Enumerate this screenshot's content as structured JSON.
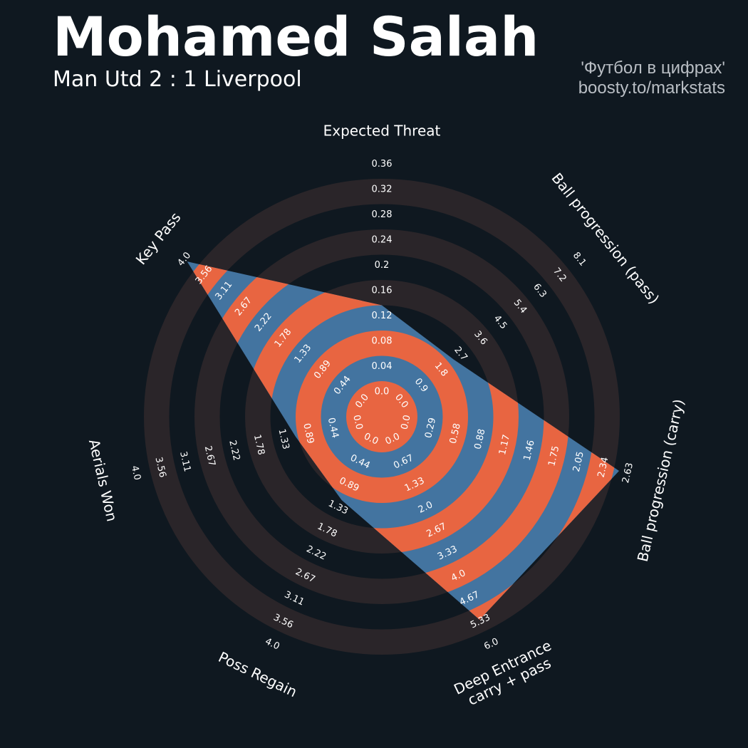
{
  "header": {
    "title": "Mohamed Salah",
    "subtitle": "Man Utd 2 : 1 Liverpool",
    "credit_line1": "'Футбол в цифрах'",
    "credit_line2": "boosty.to/markstats"
  },
  "colors": {
    "background": "#0f1820",
    "ring_band": "#2a2529",
    "fill_blue": "#4374a0",
    "fill_orange": "#e86541",
    "text": "#ffffff",
    "credit": "#b9bec4"
  },
  "chart_data": {
    "type": "radar",
    "title": "Mohamed Salah",
    "subtitle": "Man Utd 2 : 1 Liverpool",
    "axes": [
      {
        "name": "Expected Threat",
        "min": 0,
        "max": 0.36,
        "value": 0.12,
        "ticks": [
          "0.0",
          "0.04",
          "0.08",
          "0.12",
          "0.16",
          "0.2",
          "0.24",
          "0.28",
          "0.32",
          "0.36"
        ]
      },
      {
        "name": "Ball progression (pass)",
        "min": 0,
        "max": 8.1,
        "value": 2.0,
        "ticks": [
          "0.0",
          "0.9",
          "1.8",
          "2.7",
          "3.6",
          "4.5",
          "5.4",
          "6.3",
          "7.2",
          "8.1"
        ]
      },
      {
        "name": "Ball progression (carry)",
        "min": 0,
        "max": 2.63,
        "value": 2.4,
        "ticks": [
          "0.0",
          "0.29",
          "0.58",
          "0.88",
          "1.17",
          "1.46",
          "1.75",
          "2.05",
          "2.34",
          "2.63"
        ]
      },
      {
        "name": "Deep Entrance\ncarry + pass",
        "min": 0,
        "max": 6.0,
        "value": 5.0,
        "ticks": [
          "0.0",
          "0.67",
          "1.33",
          "2.0",
          "2.67",
          "3.33",
          "4.0",
          "4.67",
          "5.33",
          "6.0"
        ]
      },
      {
        "name": "Poss Regain",
        "min": 0,
        "max": 4.0,
        "value": 1.0,
        "ticks": [
          "0.0",
          "0.44",
          "0.89",
          "1.33",
          "1.78",
          "2.22",
          "2.67",
          "3.11",
          "3.56",
          "4.0"
        ]
      },
      {
        "name": "Aerials Won",
        "min": 0,
        "max": 4.0,
        "value": 0.93,
        "ticks": [
          "0.0",
          "0.44",
          "0.89",
          "1.33",
          "1.78",
          "2.22",
          "2.67",
          "3.11",
          "3.56",
          "4.0"
        ]
      },
      {
        "name": "Key Pass",
        "min": 0,
        "max": 4.0,
        "value": 3.75,
        "ticks": [
          "0.0",
          "0.44",
          "0.89",
          "1.33",
          "1.78",
          "2.22",
          "2.67",
          "3.11",
          "3.56",
          "4.0"
        ]
      }
    ]
  }
}
